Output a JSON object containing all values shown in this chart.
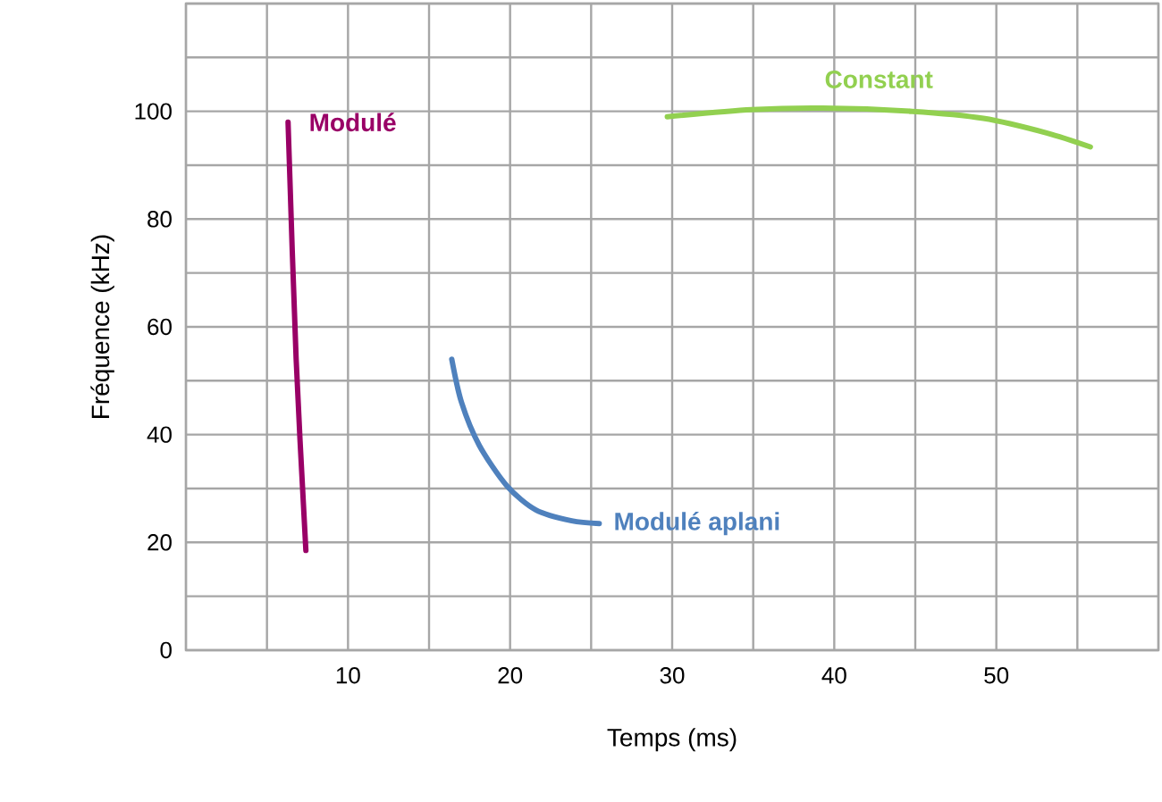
{
  "chart_data": {
    "type": "line",
    "xlabel": "Temps (ms)",
    "ylabel": "Fréquence (kHz)",
    "xlim": [
      0,
      60
    ],
    "ylim": [
      0,
      120
    ],
    "xticks": [
      {
        "value": 0,
        "label": null
      },
      {
        "value": 5,
        "label": null
      },
      10,
      {
        "value": 15,
        "label": null
      },
      20,
      {
        "value": 25,
        "label": null
      },
      30,
      {
        "value": 35,
        "label": null
      },
      40,
      {
        "value": 45,
        "label": null
      },
      50,
      {
        "value": 55,
        "label": null
      },
      {
        "value": 60,
        "label": null
      }
    ],
    "yticks": [
      0,
      {
        "value": 10,
        "label": null
      },
      20,
      {
        "value": 30,
        "label": null
      },
      40,
      {
        "value": 50,
        "label": null
      },
      60,
      {
        "value": 70,
        "label": null
      },
      80,
      {
        "value": 90,
        "label": null
      },
      100,
      {
        "value": 110,
        "label": null
      },
      {
        "value": 120,
        "label": null
      }
    ],
    "grid": true,
    "marker": "none",
    "line_style": "solid",
    "series": [
      {
        "name": "Modulé",
        "color": "#990066",
        "x": [
          6.3,
          6.8,
          7.4
        ],
        "values": [
          98,
          54,
          18.5
        ]
      },
      {
        "name": "Modulé aplani",
        "color": "#4f81bd",
        "x": [
          16.4,
          17.0,
          18.1,
          19.8,
          21.6,
          23.8,
          25.5
        ],
        "values": [
          54,
          46,
          38,
          30.5,
          26,
          24,
          23.5
        ]
      },
      {
        "name": "Constant",
        "color": "#92d050",
        "x": [
          29.7,
          34.9,
          39.3,
          44.8,
          49.2,
          53.1,
          55.8
        ],
        "values": [
          99,
          100.3,
          100.6,
          100,
          98.7,
          96,
          93.4
        ]
      }
    ]
  }
}
